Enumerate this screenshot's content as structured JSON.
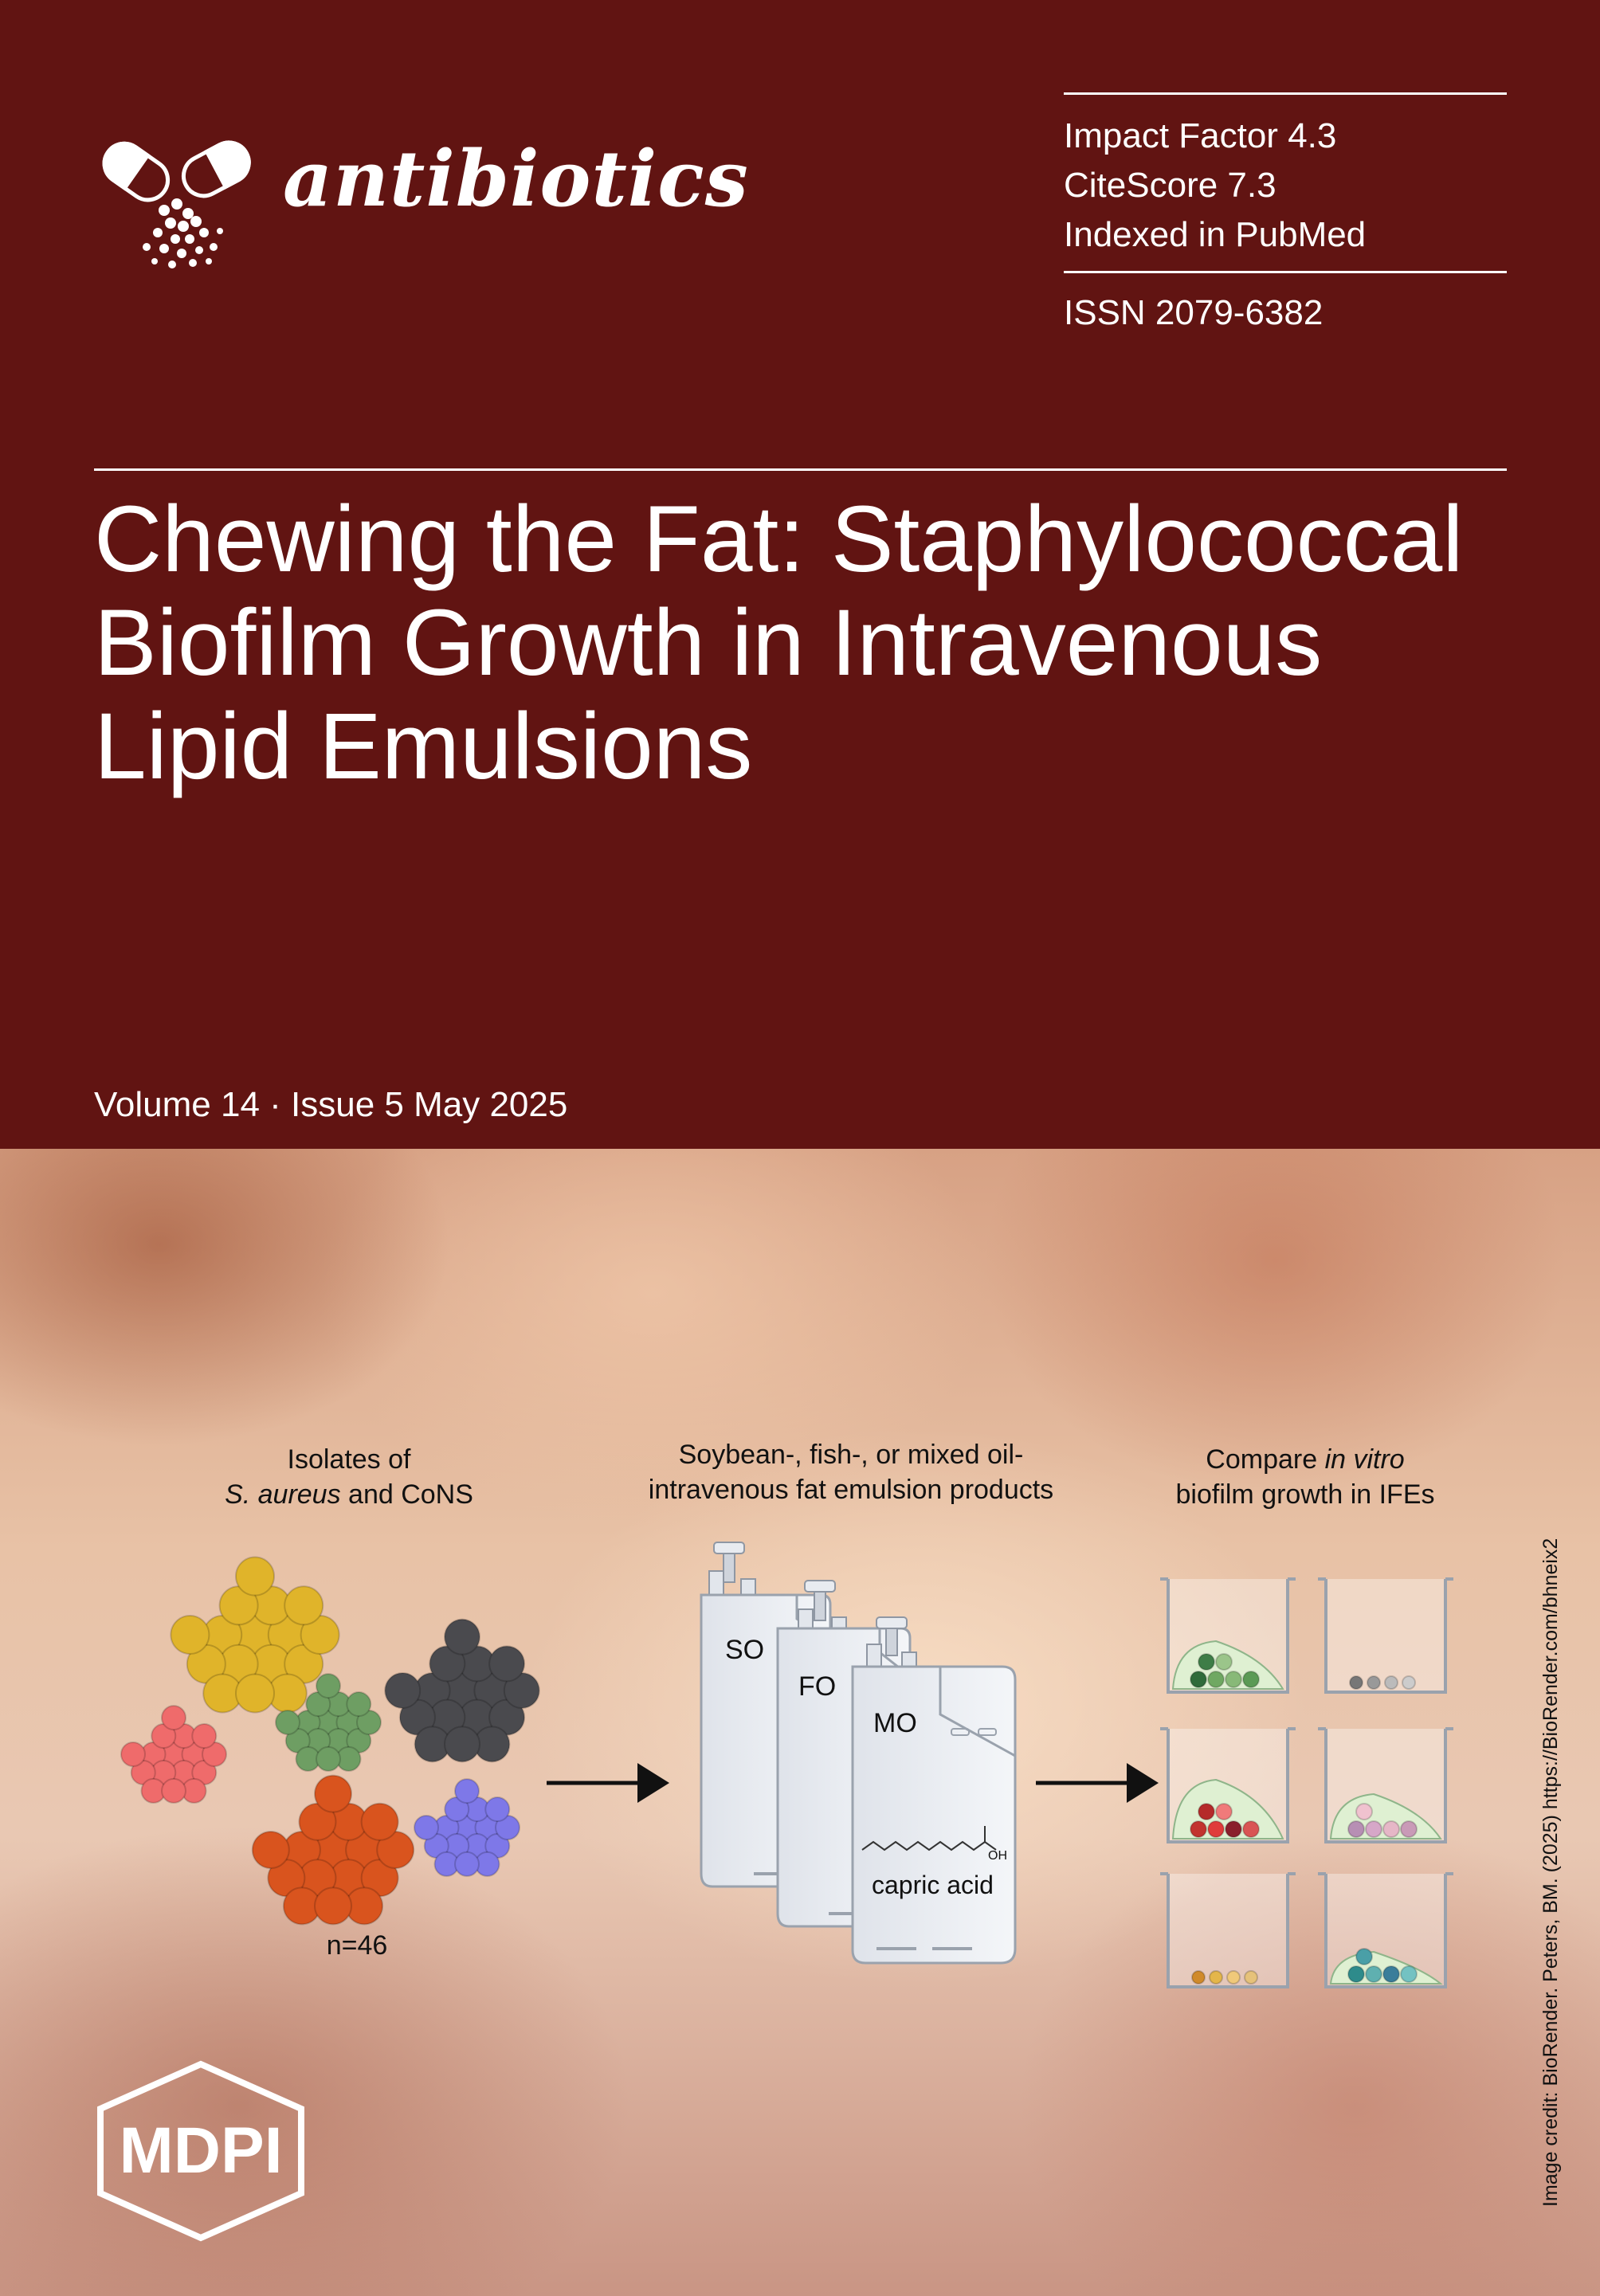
{
  "journal": {
    "name": "antibiotics",
    "impact_factor": "Impact Factor 4.3",
    "citescore": "CiteScore 7.3",
    "indexed": "Indexed in PubMed",
    "issn": "ISSN 2079-6382"
  },
  "article": {
    "title_lines": [
      "Chewing the Fat: Staphylococcal",
      "Biofilm Growth in Intravenous",
      "Lipid Emulsions"
    ]
  },
  "issue": {
    "volume_line": "Volume 14 · Issue 5 May 2025"
  },
  "infographic": {
    "isolates_line1": "Isolates of",
    "isolates_species": "S. aureus",
    "isolates_rest": " and CoNS",
    "sample_size": "n=46",
    "products_line1": "Soybean-, fish-, or mixed oil-",
    "products_line2": "intravenous fat emulsion products",
    "bag_labels": [
      "SO",
      "FO",
      "MO"
    ],
    "capric_acid": "capric acid",
    "oh_label": "OH",
    "compare_word": "Compare ",
    "compare_italic": "in vitro",
    "compare_line2": "biofilm growth in IFEs"
  },
  "credit": "Image credit: BioRender. Peters, BM. (2025) https://BioRender.com/bhneix2",
  "publisher": {
    "logo_text": "MDPI"
  },
  "colors": {
    "maroon": "#611412",
    "white": "#ffffff",
    "yellow_cluster": "#e0b42a",
    "dark_cluster": "#4a4a4e",
    "green_cluster": "#6e9e63",
    "pink_cluster": "#ef6b6b",
    "orange_cluster": "#d9541e",
    "purple_cluster": "#7e78e8"
  }
}
